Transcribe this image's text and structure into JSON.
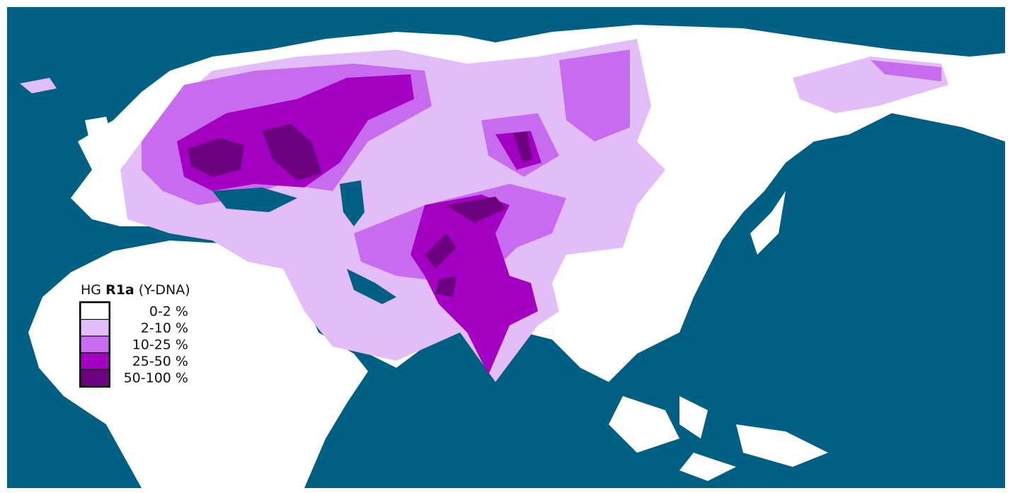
{
  "legend": {
    "title": {
      "prefix": "HG",
      "name": "R1a",
      "suffix": "(Y-DNA)"
    },
    "items": [
      {
        "label": "0-2 %",
        "color": "#ffffff"
      },
      {
        "label": "2-10 %",
        "color": "#e2bdf7"
      },
      {
        "label": "10-25 %",
        "color": "#c86cef"
      },
      {
        "label": "25-50 %",
        "color": "#a400c4"
      },
      {
        "label": "50-100 %",
        "color": "#6c007e"
      }
    ]
  }
}
